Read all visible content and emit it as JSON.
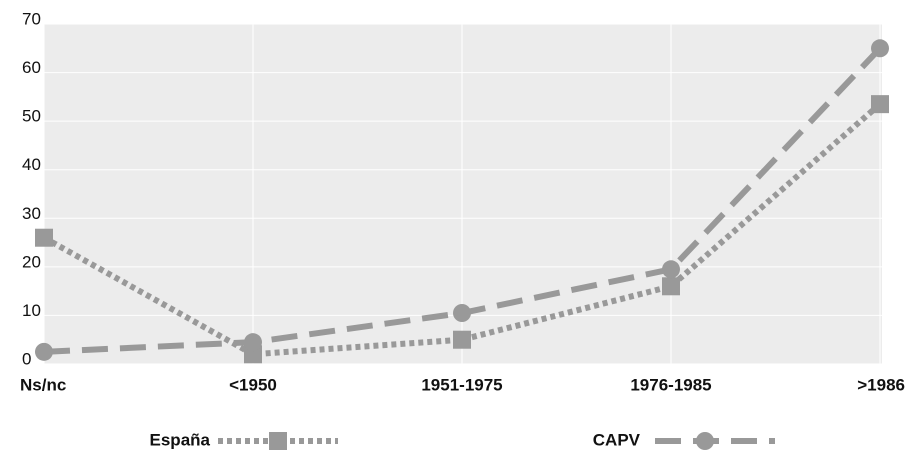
{
  "chart_data": {
    "type": "line",
    "categories": [
      "Ns/nc",
      "<1950",
      "1951-1975",
      "1976-1985",
      ">1986"
    ],
    "series": [
      {
        "name": "España",
        "color": "#999999",
        "line_style": "dotted",
        "marker": "square",
        "values": [
          26,
          2,
          5,
          16,
          53.5
        ]
      },
      {
        "name": "CAPV",
        "color": "#999999",
        "line_style": "dashed",
        "marker": "circle",
        "values": [
          2.5,
          4.5,
          10.5,
          19.5,
          65
        ]
      }
    ],
    "ylim": [
      0,
      70
    ],
    "yticks": [
      0,
      10,
      20,
      30,
      40,
      50,
      60,
      70
    ],
    "grid": true,
    "legend": "bottom"
  }
}
